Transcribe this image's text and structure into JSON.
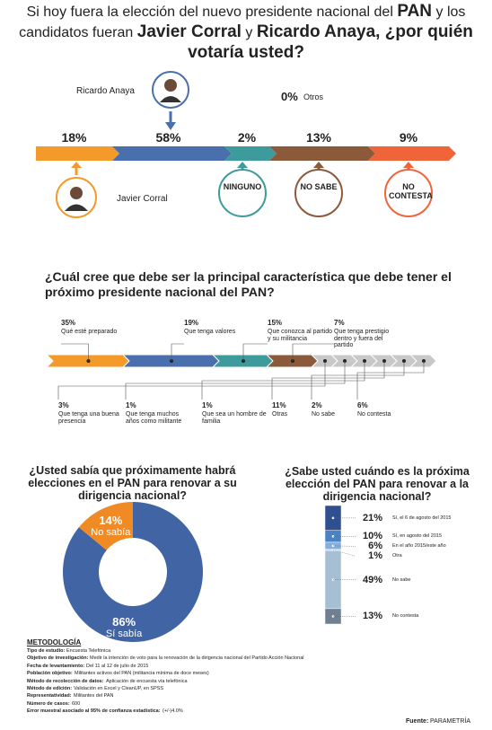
{
  "title": {
    "segments": [
      {
        "text": "Si hoy fuera la elección del nuevo presidente nacional del ",
        "bold": false
      },
      {
        "text": "PAN",
        "bold": true
      },
      {
        "text": " y los candidatos fueran ",
        "bold": false
      },
      {
        "text": "Javier Corral",
        "bold": true
      },
      {
        "text": " y ",
        "bold": false
      },
      {
        "text": "Ricardo Anaya, ¿por quién votaría usted?",
        "bold": true
      }
    ]
  },
  "chart_data": [
    {
      "type": "arrow-bar",
      "categories": [
        "Javier Corral",
        "Ricardo Anaya",
        "NINGUNO",
        "NO SABE",
        "NO CONTESTA"
      ],
      "values": [
        18,
        58,
        2,
        13,
        9
      ],
      "value_labels": [
        "18%",
        "58%",
        "2%",
        "13%",
        "9%"
      ],
      "colors": [
        "#f39a2b",
        "#4a6fad",
        "#3d9b9b",
        "#8a5a3a",
        "#f0643a"
      ],
      "other": {
        "label": "Otros",
        "value": 0,
        "value_label": "0%"
      }
    },
    {
      "type": "chevron-bar",
      "title": "¿Cuál cree que debe ser la principal característica que debe tener el próximo presidente nacional del PAN?",
      "categories": [
        "Qué esté preparado",
        "Que tenga valores",
        "Que conozca al partido y su militancia",
        "Que tenga prestigio dentro y fuera del partido",
        "Que tenga una buena presencia",
        "Que tenga muchos años como militante",
        "Que sea un hombre de familia",
        "Otras",
        "No sabe",
        "No contesta"
      ],
      "values": [
        35,
        19,
        15,
        7,
        3,
        1,
        1,
        11,
        2,
        6
      ],
      "value_labels": [
        "35%",
        "19%",
        "15%",
        "7%",
        "3%",
        "1%",
        "1%",
        "11%",
        "2%",
        "6%"
      ],
      "colors": [
        "#f39a2b",
        "#4a6fad",
        "#3d9b9b",
        "#8a5a3a",
        "#c8c8c8",
        "#c8c8c8",
        "#c8c8c8",
        "#c8c8c8",
        "#c8c8c8",
        "#c8c8c8"
      ]
    },
    {
      "type": "donut",
      "title": "¿Usted sabía que próximamente habrá elecciones en el PAN para renovar a su dirigencia nacional?",
      "categories": [
        "Sí sabía",
        "No sabía"
      ],
      "values": [
        86,
        14
      ],
      "value_labels": [
        "86%",
        "14%"
      ],
      "colors": [
        "#4064a4",
        "#f08a24"
      ]
    },
    {
      "type": "stacked-column",
      "title": "¿Sabe usted cuándo es la próxima elección del PAN para renovar a la dirigencia nacional?",
      "categories": [
        "Sí, el 6 de agosto del 2015",
        "Sí, en agosto del 2015",
        "En el año 2015/este año",
        "Otra",
        "No sabe",
        "No contesta"
      ],
      "values": [
        21,
        10,
        6,
        1,
        49,
        13
      ],
      "value_labels": [
        "21%",
        "10%",
        "6%",
        "1%",
        "49%",
        "13%"
      ],
      "colors": [
        "#2f4f8f",
        "#4a82c4",
        "#86aedb",
        "#c3d8ee",
        "#a7bfd2",
        "#6f8090"
      ]
    }
  ],
  "methodology": {
    "heading": "METODOLOGÍA",
    "items": [
      [
        "Tipo de estudio:",
        "Encuesta Telefónica"
      ],
      [
        "Objetivo de investigación:",
        "Medir la intención de voto para la renovación de la dirigencia nacional del Partido Acción Nacional"
      ],
      [
        "Fecha de levantamiento:",
        "Del 11 al 12 de julio de 2015"
      ],
      [
        "Población objetivo:",
        "Militantes activos del PAN (militancia mínima de doce meses)"
      ],
      [
        "Método de recolección de datos:",
        "Aplicación de encuesta vía telefónica"
      ],
      [
        "Método de edición:",
        "Validación en Excel y CleanUP, en SPSS"
      ],
      [
        "Representatividad:",
        "Militantes del PAN"
      ],
      [
        "Número de casos:",
        "600"
      ],
      [
        "Error muestral asociado al 95% de confianza estadística:",
        "(+/-)4.0%"
      ]
    ]
  },
  "source": {
    "label": "Fuente:",
    "name": "PARAMETRÍA"
  }
}
